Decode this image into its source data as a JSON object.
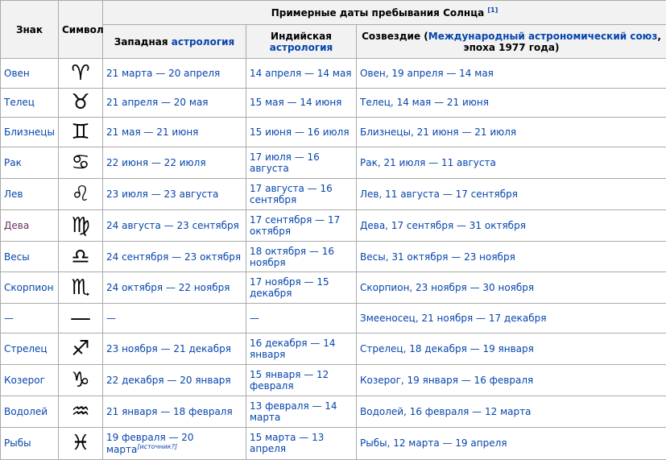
{
  "header": {
    "sign": "Знак",
    "symbol": "Символ",
    "dates": "Примерные даты пребывания Солнца",
    "dates_ref": "[1]",
    "western_plain": "Западная",
    "western_link": "астрология",
    "indian_plain": "Индийская",
    "indian_link": "астрология",
    "constellation_plain": "Созвездие (",
    "constellation_link": "Международный астрономический союз",
    "constellation_tail": ", эпоха 1977 года)"
  },
  "table": {
    "rows": [
      [
        "Овен",
        "♈",
        "21 марта — 20 апреля",
        "14 апреля — 14 мая",
        "Овен, 19 апреля — 14 мая"
      ],
      [
        "Телец",
        "♉",
        "21 апреля — 20 мая",
        "15 мая — 14 июня",
        "Телец, 14 мая — 21 июня"
      ],
      [
        "Близнецы",
        "♊",
        "21 мая — 21 июня",
        "15 июня — 16 июля",
        "Близнецы, 21 июня — 21 июля"
      ],
      [
        "Рак",
        "♋",
        "22 июня — 22 июля",
        "17 июля — 16 августа",
        "Рак, 21 июля — 11 августа"
      ],
      [
        "Лев",
        "♌",
        "23 июля — 23 августа",
        "17 августа — 16 сентября",
        "Лев, 11 августа — 17 сентября"
      ],
      [
        "Дева",
        "♍",
        "24 августа — 23 сентября",
        "17 сентября — 17 октября",
        "Дева, 17 сентября — 31 октября"
      ],
      [
        "Весы",
        "♎",
        "24 сентября — 23 октября",
        "18 октября — 16 ноября",
        "Весы, 31 октября — 23 ноября"
      ],
      [
        "Скорпион",
        "♏",
        "24 октября — 22 ноября",
        "17 ноября — 15 декабря",
        "Скорпион, 23 ноября — 30 ноября"
      ],
      [
        "—",
        "—",
        "—",
        "—",
        "Змееносец, 21 ноября — 17 декабря"
      ],
      [
        "Стрелец",
        "♐",
        "23 ноября — 21 декабря",
        "16 декабря — 14 января",
        "Стрелец, 18 декабря — 19 января"
      ],
      [
        "Козерог",
        "♑",
        "22 декабря — 20 января",
        "15 января — 12 февраля",
        "Козерог, 19 января — 16 февраля"
      ],
      [
        "Водолей",
        "♒",
        "21 января — 18 февраля",
        "13 февраля — 14 марта",
        "Водолей, 16 февраля — 12 марта"
      ],
      [
        "Рыбы",
        "♓",
        "19 февраля — 20 марта",
        "15 марта — 13 апреля",
        "Рыбы, 12 марта — 19 апреля"
      ]
    ],
    "citation_needed": "[источник?]"
  }
}
